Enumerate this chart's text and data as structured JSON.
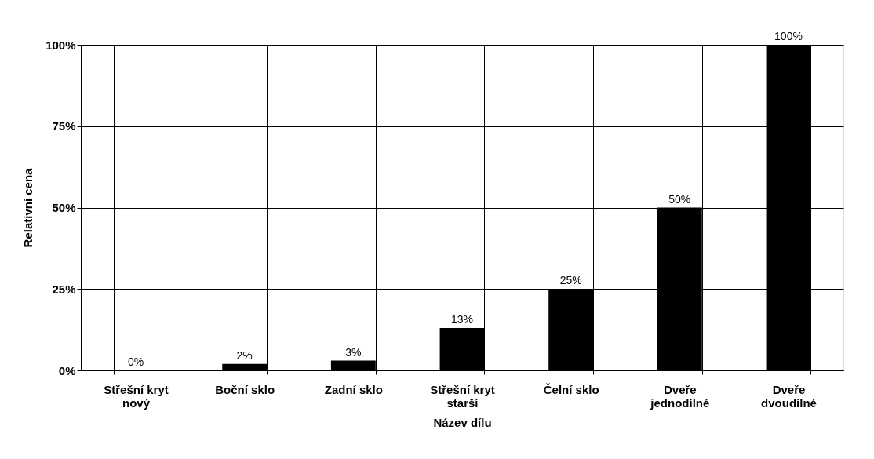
{
  "chart_data": {
    "type": "bar",
    "xlabel": "Název dílu",
    "ylabel": "Relativní cena",
    "categories": [
      "Střešní kryt nový",
      "Boční sklo",
      "Zadní sklo",
      "Střešní kryt starší",
      "Čelní sklo",
      "Dveře jednodílné",
      "Dveře dvoudílné"
    ],
    "values": [
      0,
      2,
      3,
      13,
      25,
      50,
      100
    ],
    "color": "#000000",
    "value_labels": [
      "0%",
      "2%",
      "3%",
      "13%",
      "25%",
      "50%",
      "100%"
    ],
    "ylim": [
      0,
      100
    ],
    "yticks": [
      {
        "value": 0,
        "label": "0%"
      },
      {
        "value": 25,
        "label": "25%"
      },
      {
        "value": 50,
        "label": "50%"
      },
      {
        "value": 75,
        "label": "75%"
      },
      {
        "value": 100,
        "label": "100%"
      }
    ],
    "grid": true
  }
}
